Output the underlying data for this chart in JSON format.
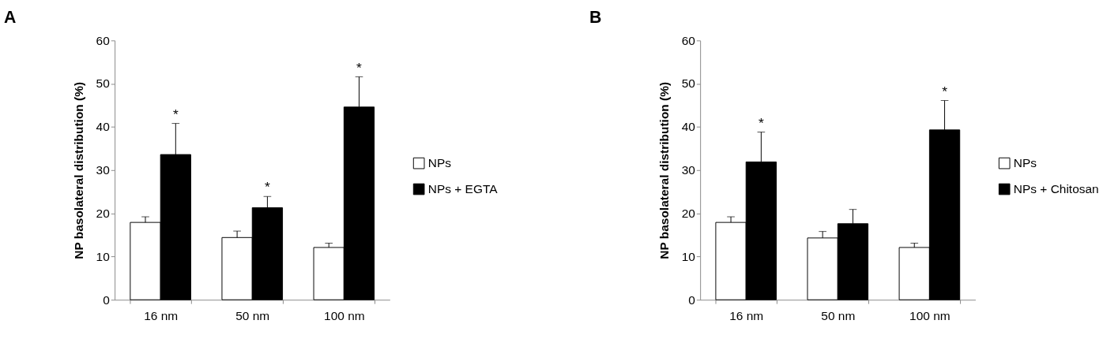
{
  "chart_data": [
    {
      "type": "bar",
      "title": "A",
      "ylabel": "NP basolateral distribution (%)",
      "categories": [
        "16 nm",
        "50 nm",
        "100 nm"
      ],
      "ylim": [
        0,
        60
      ],
      "yticks": [
        0,
        10,
        20,
        30,
        40,
        50,
        60
      ],
      "grid": false,
      "legend": "right",
      "series": [
        {
          "name": "NPs",
          "color": "#ffffff",
          "values": [
            17.9,
            14.4,
            12.1
          ],
          "errors": [
            [
              17.9,
              19.2
            ],
            [
              14.4,
              15.9
            ],
            [
              12.1,
              13.1
            ]
          ]
        },
        {
          "name": "NPs + EGTA",
          "color": "#000000",
          "values": [
            33.6,
            21.3,
            44.6
          ],
          "errors": [
            [
              33.6,
              40.8
            ],
            [
              21.3,
              23.9
            ],
            [
              44.6,
              51.6
            ]
          ],
          "value_labels": [
            "*",
            "*",
            "*"
          ]
        }
      ]
    },
    {
      "type": "bar",
      "title": "B",
      "ylabel": "NP basolateral distribution (%)",
      "categories": [
        "16 nm",
        "50 nm",
        "100 nm"
      ],
      "ylim": [
        0,
        60
      ],
      "yticks": [
        0,
        10,
        20,
        30,
        40,
        50,
        60
      ],
      "grid": false,
      "legend": "right",
      "series": [
        {
          "name": "NPs",
          "color": "#ffffff",
          "values": [
            17.9,
            14.3,
            12.1
          ],
          "errors": [
            [
              17.9,
              19.2
            ],
            [
              14.3,
              15.8
            ],
            [
              12.1,
              13.1
            ]
          ]
        },
        {
          "name": "NPs + Chitosan",
          "color": "#000000",
          "values": [
            31.9,
            17.6,
            39.3
          ],
          "errors": [
            [
              31.9,
              38.8
            ],
            [
              17.6,
              20.9
            ],
            [
              39.3,
              46.1
            ]
          ],
          "value_labels": [
            "*",
            null,
            "*"
          ]
        }
      ]
    }
  ]
}
